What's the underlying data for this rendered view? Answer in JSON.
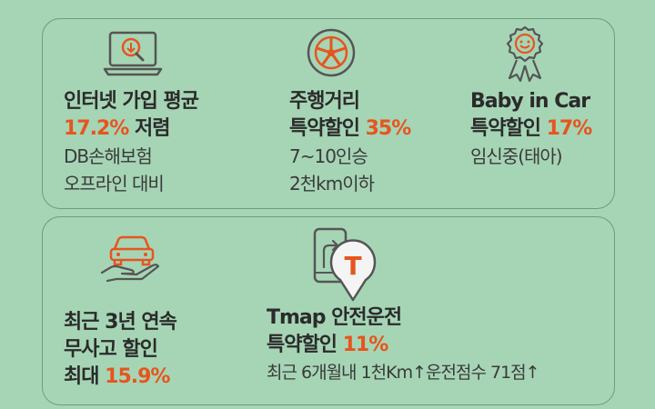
{
  "colors": {
    "background": "#a6d5b5",
    "accent": "#e6551e",
    "text": "#2b2b2b"
  },
  "top_panel": {
    "cards": [
      {
        "icon": "laptop-search-icon",
        "title_line1": "인터넷 가입 평균",
        "accent": "17.2%",
        "title_line2_rest": " 저렴",
        "sub1": "DB손해보험",
        "sub2": "오프라인 대비"
      },
      {
        "icon": "tire-wheel-icon",
        "title_line1": "주행거리",
        "title_line2_prefix": "특약할인 ",
        "accent": "35%",
        "sub1": "7~10인승",
        "sub2": "2천km이하"
      },
      {
        "icon": "smiley-badge-icon",
        "title_line1": "Baby in Car",
        "title_line2_prefix": "특약할인 ",
        "accent": "17%",
        "sub1": "임신중(태아)"
      }
    ]
  },
  "bottom_panel": {
    "cards": [
      {
        "icon": "car-hand-icon",
        "line1": "최근 3년 연속",
        "line2": "무사고 할인",
        "line3_prefix": "최대 ",
        "accent": "15.9%"
      },
      {
        "icon": "tmap-phone-icon",
        "tmap_letter": "T",
        "line1": "Tmap 안전운전",
        "line2_prefix": "특약할인 ",
        "accent": "11%",
        "sub": "최근 6개월내 1천Km↑운전점수 71점↑"
      }
    ]
  }
}
